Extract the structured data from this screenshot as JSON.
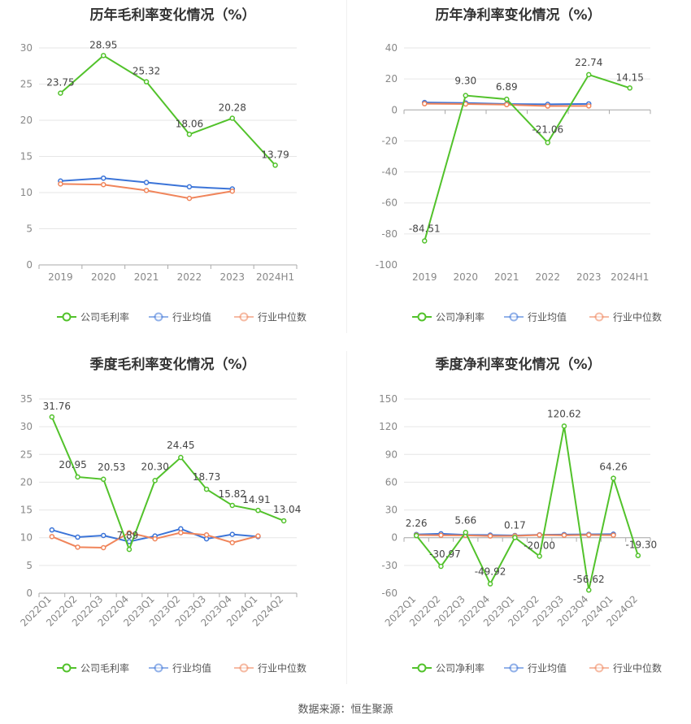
{
  "source_label": "数据来源：恒生聚源",
  "colors": {
    "company": "#52c22b",
    "industry_avg": "#3b74d8",
    "industry_median": "#f0855b"
  },
  "chart_data": [
    {
      "type": "line",
      "title": "历年毛利率变化情况（%）",
      "categories": [
        "2019",
        "2020",
        "2021",
        "2022",
        "2023",
        "2024H1"
      ],
      "ylim": [
        0,
        30
      ],
      "yticks": [
        0,
        5,
        10,
        15,
        20,
        25,
        30
      ],
      "series": [
        {
          "name": "公司毛利率",
          "values": [
            23.75,
            28.95,
            25.32,
            18.06,
            20.28,
            13.79
          ],
          "labels": [
            "23.75",
            "28.95",
            "25.32",
            "18.06",
            "20.28",
            "13.79"
          ]
        },
        {
          "name": "行业均值",
          "values": [
            11.6,
            12.0,
            11.4,
            10.8,
            10.5,
            null
          ]
        },
        {
          "name": "行业中位数",
          "values": [
            11.2,
            11.1,
            10.3,
            9.2,
            10.2,
            null
          ]
        }
      ],
      "legend": "bottom"
    },
    {
      "type": "line",
      "title": "历年净利率变化情况（%）",
      "categories": [
        "2019",
        "2020",
        "2021",
        "2022",
        "2023",
        "2024H1"
      ],
      "ylim": [
        -100,
        40
      ],
      "yticks": [
        -100,
        -80,
        -60,
        -40,
        -20,
        0,
        20,
        40
      ],
      "series": [
        {
          "name": "公司净利率",
          "values": [
            -84.51,
            9.3,
            6.89,
            -21.06,
            22.74,
            14.15
          ],
          "labels": [
            "-84.51",
            "9.30",
            "6.89",
            "-21.06",
            "22.74",
            "14.15"
          ]
        },
        {
          "name": "行业均值",
          "values": [
            4.8,
            4.5,
            3.8,
            3.6,
            3.9,
            null
          ]
        },
        {
          "name": "行业中位数",
          "values": [
            4.0,
            3.8,
            3.4,
            2.5,
            2.6,
            null
          ]
        }
      ],
      "legend": "bottom"
    },
    {
      "type": "line",
      "title": "季度毛利率变化情况（%）",
      "categories": [
        "2022Q1",
        "2022Q2",
        "2022Q3",
        "2022Q4",
        "2023Q1",
        "2023Q2",
        "2023Q3",
        "2023Q4",
        "2024Q1",
        "2024Q2"
      ],
      "ylim": [
        0,
        35
      ],
      "yticks": [
        0,
        5,
        10,
        15,
        20,
        25,
        30,
        35
      ],
      "series": [
        {
          "name": "公司毛利率",
          "values": [
            31.76,
            20.95,
            20.53,
            7.89,
            20.3,
            24.45,
            18.73,
            15.82,
            14.91,
            13.04
          ],
          "labels": [
            "31.76",
            "20.95",
            "20.53",
            "7.89",
            "20.30",
            "24.45",
            "18.73",
            "15.82",
            "14.91",
            "13.04"
          ]
        },
        {
          "name": "行业均值",
          "values": [
            11.4,
            10.1,
            10.4,
            9.3,
            10.3,
            11.6,
            9.8,
            10.6,
            10.2,
            null
          ]
        },
        {
          "name": "行业中位数",
          "values": [
            10.2,
            8.3,
            8.2,
            10.9,
            9.8,
            10.9,
            10.5,
            9.1,
            10.3,
            null
          ]
        }
      ],
      "legend": "bottom"
    },
    {
      "type": "line",
      "title": "季度净利率变化情况（%）",
      "categories": [
        "2022Q1",
        "2022Q2",
        "2022Q3",
        "2022Q4",
        "2023Q1",
        "2023Q2",
        "2023Q3",
        "2023Q4",
        "2024Q1",
        "2024Q2"
      ],
      "ylim": [
        -60,
        150
      ],
      "yticks": [
        -60,
        -30,
        0,
        30,
        60,
        90,
        120,
        150
      ],
      "series": [
        {
          "name": "公司净利率",
          "values": [
            2.26,
            -30.97,
            5.66,
            -49.92,
            0.17,
            -20.0,
            120.62,
            -56.62,
            64.26,
            -19.3
          ],
          "labels": [
            "2.26",
            "-30.97",
            "5.66",
            "-49.92",
            "0.17",
            "-20.00",
            "120.62",
            "-56.62",
            "64.26",
            "-19.30"
          ]
        },
        {
          "name": "行业均值",
          "values": [
            3.5,
            4.2,
            3.0,
            2.8,
            2.4,
            3.1,
            3.4,
            3.6,
            3.8,
            null
          ]
        },
        {
          "name": "行业中位数",
          "values": [
            2.8,
            2.6,
            2.5,
            1.8,
            1.9,
            2.9,
            2.6,
            2.9,
            2.7,
            null
          ]
        }
      ],
      "legend": "bottom"
    }
  ]
}
